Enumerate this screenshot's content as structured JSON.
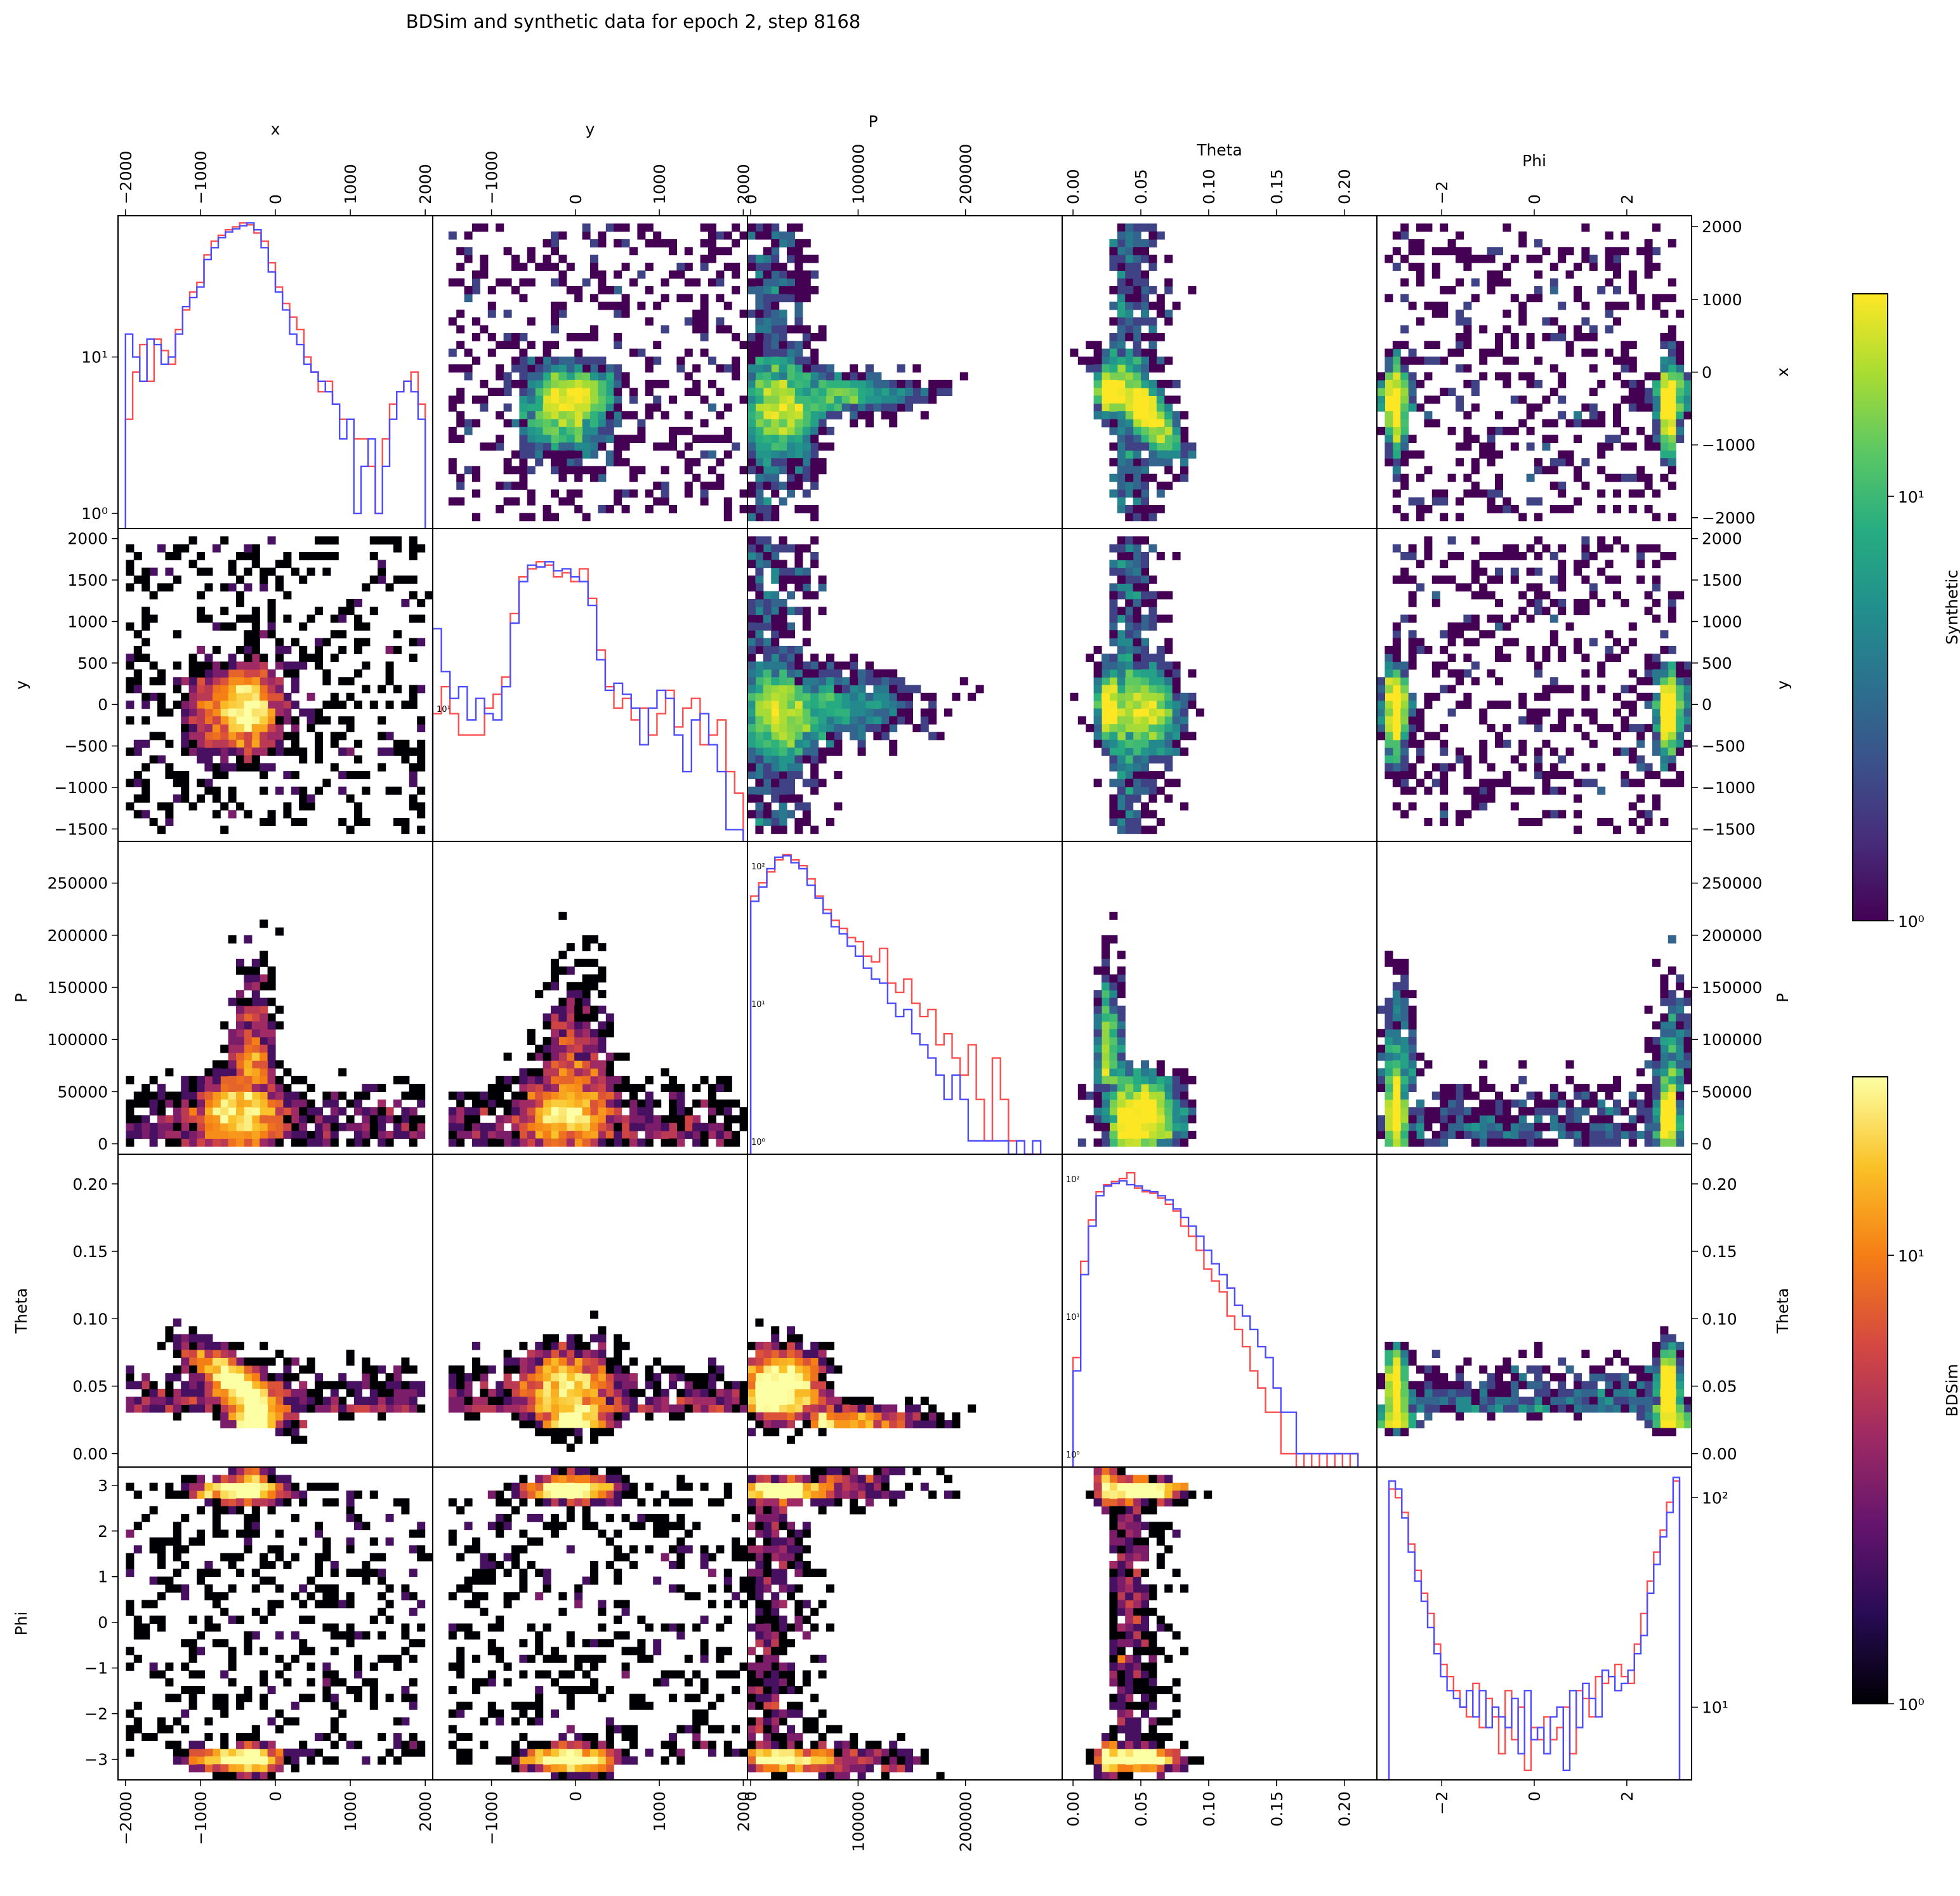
{
  "title": "BDSim and synthetic data for epoch 2, step 8168",
  "legend": {
    "synthetic_label": "Synthetic",
    "bdsim_label": "BDSim",
    "synthetic_ticks": [
      "10⁰",
      "10¹"
    ],
    "bdsim_ticks": [
      "10⁰",
      "10¹"
    ],
    "synthetic_range": [
      1,
      30
    ],
    "bdsim_range": [
      1,
      25
    ]
  },
  "colors": {
    "bdsim_hist": "#ff4d4d",
    "synthetic_hist": "#4d4dff",
    "synthetic_cmap": "viridis",
    "bdsim_cmap": "inferno"
  },
  "chart_data": {
    "type": "pair-grid",
    "description_layout": "5x5 corner plot: lower triangle = BDSim 2D histograms (inferno), upper triangle = synthetic 2D histograms (viridis), diagonal = 1D histograms, log scale",
    "variables": [
      {
        "name": "x",
        "label": "x",
        "range": [
          -2100,
          2100
        ],
        "ticks": [
          -2000,
          -1000,
          0,
          1000,
          2000
        ],
        "tick_labels": [
          "−2000",
          "−1000",
          "0",
          "1000",
          "2000"
        ],
        "row_range": [
          -2150,
          2150
        ],
        "row_ticks": [
          -2000,
          -1000,
          0,
          1000,
          2000
        ],
        "row_tick_labels": [
          "−2000",
          "−1000",
          "0",
          "1000",
          "2000"
        ]
      },
      {
        "name": "y",
        "label": "y",
        "range": [
          -1700,
          2050
        ],
        "ticks": [
          -1000,
          0,
          1000,
          2000
        ],
        "tick_labels": [
          "−1000",
          "0",
          "1000",
          "2000"
        ],
        "row_range": [
          -1650,
          2120
        ],
        "row_ticks": [
          -1500,
          -1000,
          -500,
          0,
          500,
          1000,
          1500,
          2000
        ],
        "row_tick_labels": [
          "−1500",
          "−1000",
          "−500",
          "0",
          "500",
          "1000",
          "1500",
          "2000"
        ]
      },
      {
        "name": "P",
        "label": "P",
        "range": [
          -3000,
          290000
        ],
        "ticks": [
          0,
          100000,
          200000
        ],
        "tick_labels": [
          "0",
          "100000",
          "200000"
        ],
        "row_range": [
          -10000,
          290000
        ],
        "row_ticks": [
          0,
          50000,
          100000,
          150000,
          200000,
          250000
        ],
        "row_tick_labels": [
          "0",
          "50000",
          "100000",
          "150000",
          "200000",
          "250000"
        ]
      },
      {
        "name": "Theta",
        "label": "Theta",
        "range": [
          -0.008,
          0.224
        ],
        "ticks": [
          0,
          0.05,
          0.1,
          0.15,
          0.2
        ],
        "tick_labels": [
          "0.00",
          "0.05",
          "0.10",
          "0.15",
          "0.20"
        ],
        "row_range": [
          -0.01,
          0.222
        ],
        "row_ticks": [
          0,
          0.05,
          0.1,
          0.15,
          0.2
        ],
        "row_tick_labels": [
          "0.00",
          "0.05",
          "0.10",
          "0.15",
          "0.20"
        ]
      },
      {
        "name": "Phi",
        "label": "Phi",
        "range": [
          -3.4,
          3.4
        ],
        "ticks": [
          -2,
          0,
          2
        ],
        "tick_labels": [
          "−2",
          "0",
          "2"
        ],
        "row_range": [
          -3.45,
          3.4
        ],
        "row_ticks": [
          -3,
          -2,
          -1,
          0,
          1,
          2,
          3
        ],
        "row_tick_labels": [
          "−3",
          "−2",
          "−1",
          "0",
          "1",
          "2",
          "3"
        ]
      }
    ],
    "diagonal_histograms": [
      {
        "variable": "x",
        "scale": "log",
        "ylim": [
          0.8,
          80
        ],
        "tick_labels": [
          "10⁰",
          "10¹"
        ],
        "edges": [
          -2000,
          2000
        ],
        "series": [
          {
            "name": "BDSim",
            "values": [
              4,
              8,
              12,
              7,
              13,
              11,
              9,
              15,
              20,
              26,
              30,
              45,
              55,
              60,
              65,
              68,
              72,
              70,
              62,
              55,
              40,
              28,
              22,
              18,
              15,
              10,
              8,
              6,
              7,
              5,
              4,
              4,
              3,
              3,
              2,
              1,
              3,
              5,
              6,
              7,
              8,
              5
            ]
          },
          {
            "name": "Synthetic",
            "values": [
              14,
              10,
              7,
              13,
              12,
              9,
              10,
              14,
              21,
              24,
              28,
              42,
              50,
              58,
              63,
              66,
              69,
              72,
              65,
              50,
              35,
              26,
              20,
              14,
              12,
              9,
              8,
              7,
              6,
              5,
              3,
              4,
              1,
              2,
              3,
              1,
              2,
              4,
              6,
              7,
              6,
              4
            ]
          }
        ]
      },
      {
        "variable": "y",
        "scale": "log",
        "ylim": [
          0.8,
          300
        ],
        "tick_labels": [
          "10¹"
        ],
        "edges": [
          -1700,
          2000
        ],
        "series": [
          {
            "name": "BDSim",
            "values": [
              9,
              15,
              9,
              6,
              6,
              6,
              10,
              13,
              18,
              60,
              120,
              140,
              160,
              150,
              120,
              130,
              110,
              140,
              80,
              30,
              15,
              10,
              12,
              8,
              10,
              6,
              9,
              14,
              7,
              10,
              12,
              5,
              6,
              8,
              3,
              2
            ]
          },
          {
            "name": "Synthetic",
            "values": [
              45,
              20,
              12,
              15,
              8,
              12,
              9,
              8,
              15,
              50,
              110,
              150,
              145,
              160,
              135,
              140,
              120,
              110,
              70,
              25,
              14,
              16,
              13,
              10,
              5,
              10,
              14,
              12,
              6,
              3,
              8,
              9,
              5,
              3,
              1,
              1
            ]
          }
        ]
      },
      {
        "variable": "P",
        "scale": "log",
        "ylim": [
          0.8,
          150
        ],
        "tick_labels": [
          "10⁰",
          "10¹",
          "10²"
        ],
        "edges": [
          0,
          270000
        ],
        "series": [
          {
            "name": "BDSim",
            "values": [
              60,
              75,
              90,
              110,
              120,
              110,
              100,
              80,
              60,
              48,
              40,
              35,
              30,
              28,
              22,
              20,
              25,
              14,
              12,
              15,
              10,
              8,
              9,
              5,
              6,
              4,
              3,
              5,
              2,
              1,
              4,
              2,
              1,
              1,
              0,
              0
            ]
          },
          {
            "name": "Synthetic",
            "values": [
              55,
              70,
              95,
              115,
              118,
              105,
              95,
              72,
              58,
              45,
              36,
              32,
              26,
              22,
              18,
              15,
              14,
              10,
              8,
              9,
              6,
              5,
              4,
              3,
              2,
              3,
              2,
              1,
              1,
              1,
              1,
              1,
              0,
              1,
              0,
              1
            ]
          }
        ]
      },
      {
        "variable": "Theta",
        "scale": "log",
        "ylim": [
          0.8,
          150
        ],
        "tick_labels": [
          "10⁰",
          "10¹",
          "10²"
        ],
        "edges": [
          0,
          0.21
        ],
        "series": [
          {
            "name": "BDSim",
            "values": [
              5,
              25,
              50,
              80,
              90,
              95,
              100,
              110,
              85,
              80,
              78,
              72,
              65,
              58,
              45,
              38,
              30,
              22,
              18,
              15,
              10,
              8,
              6,
              4,
              3,
              2,
              2,
              1,
              1,
              0,
              1,
              0,
              1,
              0,
              1,
              0,
              1
            ]
          },
          {
            "name": "Synthetic",
            "values": [
              4,
              20,
              45,
              75,
              88,
              92,
              96,
              90,
              88,
              82,
              80,
              75,
              70,
              60,
              52,
              45,
              38,
              30,
              24,
              20,
              16,
              12,
              10,
              8,
              6,
              5,
              3,
              2,
              2,
              1,
              1,
              1,
              1,
              1,
              1,
              1,
              1
            ]
          }
        ]
      },
      {
        "variable": "Phi",
        "scale": "log",
        "ylim": [
          4.5,
          140
        ],
        "tick_labels": [
          "10¹",
          "10²"
        ],
        "edges": [
          -3.14,
          3.14
        ],
        "series": [
          {
            "name": "BDSim",
            "values": [
              110,
              100,
              85,
              60,
              45,
              35,
              28,
              20,
              16,
              14,
              12,
              10,
              9,
              13,
              8,
              11,
              9,
              6,
              12,
              7,
              10,
              5,
              8,
              7,
              9,
              7,
              8,
              10,
              6,
              12,
              11,
              9,
              14,
              13,
              14,
              16,
              14,
              13,
              20,
              28,
              40,
              55,
              70,
              95,
              120
            ]
          },
          {
            "name": "Synthetic",
            "values": [
              120,
              110,
              80,
              55,
              40,
              32,
              24,
              18,
              14,
              12,
              11,
              10,
              12,
              9,
              12,
              8,
              10,
              9,
              8,
              11,
              6,
              12,
              7,
              8,
              6,
              9,
              10,
              5,
              12,
              8,
              13,
              11,
              9,
              15,
              14,
              12,
              13,
              15,
              18,
              22,
              35,
              48,
              65,
              85,
              125
            ]
          }
        ]
      }
    ],
    "lower_triangle": "BDSim 2D histograms (counts 1–25, log color)",
    "upper_triangle": "Synthetic 2D histograms (counts 1–30, log color)"
  }
}
